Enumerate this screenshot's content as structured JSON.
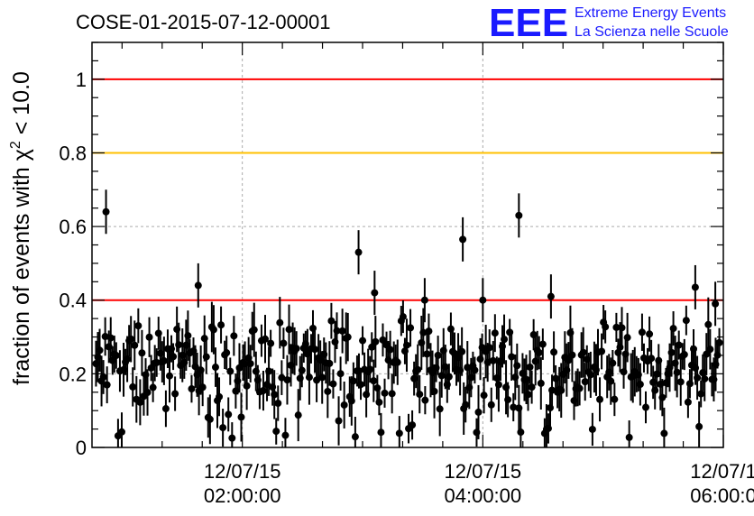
{
  "chart_data": {
    "type": "scatter",
    "title": "COSE-01-2015-07-12-00001",
    "ylabel": "fraction of events with χ",
    "ylabel_sup": "2",
    "ylabel_tail": " < 10.0",
    "ylim": [
      0,
      1.1
    ],
    "xlim": [
      "12/07/15 00:45:00",
      "12/07/15 06:00:00"
    ],
    "y_ticks": [
      "0",
      "0.2",
      "0.4",
      "0.6",
      "0.8",
      "1"
    ],
    "x_ticks": [
      {
        "date": "12/07/15",
        "time": "02:00:00"
      },
      {
        "date": "12/07/15",
        "time": "04:00:00"
      },
      {
        "date": "12/07/1",
        "time": "06:00:0"
      }
    ],
    "grid": true,
    "reference_lines": [
      {
        "y": 1.0,
        "color": "#ff0000"
      },
      {
        "y": 0.8,
        "color": "#ffc000"
      },
      {
        "y": 0.4,
        "color": "#ff0000"
      }
    ],
    "marker_color": "#000000",
    "highlighted_points": [
      {
        "x": "00:52",
        "y": 0.64
      },
      {
        "x": "01:38",
        "y": 0.44
      },
      {
        "x": "02:58",
        "y": 0.53
      },
      {
        "x": "03:06",
        "y": 0.42
      },
      {
        "x": "03:31",
        "y": 0.4
      },
      {
        "x": "03:50",
        "y": 0.565
      },
      {
        "x": "04:00",
        "y": 0.4
      },
      {
        "x": "04:18",
        "y": 0.63
      },
      {
        "x": "04:34",
        "y": 0.41
      },
      {
        "x": "05:46",
        "y": 0.435
      },
      {
        "x": "05:56",
        "y": 0.39
      }
    ],
    "n_points": 340,
    "typical_range": [
      0.02,
      0.36
    ],
    "typical_mean": 0.17
  },
  "logo": {
    "letters": "EEE",
    "line1": "Extreme Energy Events",
    "line2": "La Scienza nelle Scuole"
  }
}
